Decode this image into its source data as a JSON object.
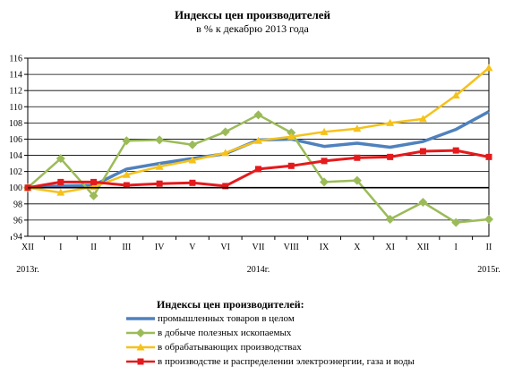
{
  "chart_data": {
    "type": "line",
    "title": "Индексы цен производителей",
    "subtitle": "в % к декабрю 2013 года",
    "categories": [
      "XII",
      "I",
      "II",
      "III",
      "IV",
      "V",
      "VI",
      "VII",
      "VIII",
      "IX",
      "X",
      "XI",
      "XII",
      "I",
      "II"
    ],
    "year_labels": [
      {
        "label": "2013г.",
        "index": 0
      },
      {
        "label": "2014г.",
        "index": 7
      },
      {
        "label": "2015г.",
        "index": 14
      }
    ],
    "yticks": [
      94,
      96,
      98,
      100,
      102,
      104,
      106,
      108,
      110,
      112,
      114,
      116
    ],
    "ylim": [
      94,
      116
    ],
    "baseline": 100,
    "grid": true,
    "legend_title": "Индексы цен производителей:",
    "legend_position": "bottom",
    "series": [
      {
        "name": "промышленных товаров в целом",
        "color": "#4f81bd",
        "marker": "none",
        "values": [
          100.0,
          100.2,
          100.3,
          102.3,
          103.0,
          103.6,
          104.2,
          105.9,
          106.0,
          105.1,
          105.5,
          105.0,
          105.7,
          107.2,
          109.4
        ]
      },
      {
        "name": "в добыче полезных ископаемых",
        "color": "#9bbb59",
        "marker": "diamond",
        "values": [
          100.0,
          103.6,
          99.0,
          105.8,
          105.9,
          105.3,
          106.9,
          109.0,
          106.8,
          100.7,
          100.9,
          96.1,
          98.2,
          95.7,
          96.1
        ]
      },
      {
        "name": "в обрабатывающих производствах",
        "color": "#f5c21b",
        "marker": "triangle",
        "values": [
          100.0,
          99.4,
          100.1,
          101.6,
          102.6,
          103.4,
          104.3,
          105.8,
          106.3,
          106.9,
          107.3,
          108.0,
          108.5,
          111.4,
          114.8
        ]
      },
      {
        "name": "в производстве и распределении  электроэнергии,  газа и воды",
        "color": "#e41a1c",
        "marker": "square",
        "values": [
          100.0,
          100.7,
          100.7,
          100.3,
          100.5,
          100.6,
          100.2,
          102.3,
          102.7,
          103.3,
          103.7,
          103.8,
          104.5,
          104.6,
          103.8
        ]
      }
    ]
  }
}
